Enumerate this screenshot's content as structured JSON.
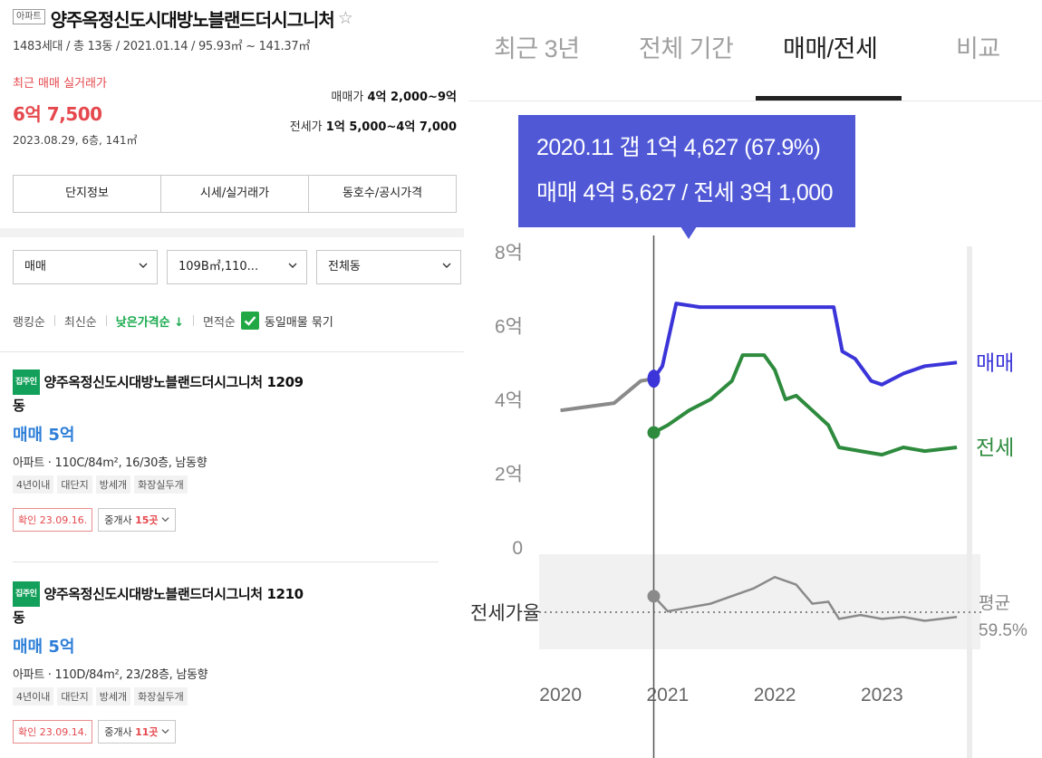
{
  "complex": {
    "type_badge": "아파트",
    "name": "양주옥정신도시대방노블랜드더시그니처",
    "star": "☆",
    "summary": "1483세대 / 총 13동 / 2021.01.14 / 95.93㎡ ~ 141.37㎡",
    "recent_label": "최근 매매 실거래가",
    "recent_price": "6억 7,500",
    "recent_date": "2023.08.29, 6층, 141㎡",
    "sale_range_label": "매매가",
    "sale_range_value": "4억 2,000~9억",
    "jeonse_range_label": "전세가",
    "jeonse_range_value": "1억 5,000~4억 7,000"
  },
  "tabs": [
    "단지정보",
    "시세/실거래가",
    "동호수/공시가격"
  ],
  "filters": {
    "trade_type": "매매",
    "area": "109B㎡,110...",
    "dong": "전체동"
  },
  "sorts": {
    "items": [
      "랭킹순",
      "최신순",
      "낮은가격순 ↓",
      "면적순"
    ],
    "active_index": 2,
    "group_label": "동일매물 묶기",
    "group_checked": true
  },
  "listings": [
    {
      "badge": "집주인",
      "name_line1": "양주옥정신도시대방노블랜드더시그니처 1209",
      "name_line2": "동",
      "price": "매매 5억",
      "desc": "아파트 · 110C/84m², 16/30층, 남동향",
      "tags": [
        "4년이내",
        "대단지",
        "방세개",
        "화장실두개"
      ],
      "confirm": "확인 23.09.16.",
      "agent_label": "중개사",
      "agent_count": "15곳"
    },
    {
      "badge": "집주인",
      "name_line1": "양주옥정신도시대방노블랜드더시그니처 1210",
      "name_line2": "동",
      "price": "매매 5억",
      "desc": "아파트 · 110D/84m², 23/28층, 남동향",
      "tags": [
        "4년이내",
        "대단지",
        "방세개",
        "화장실두개"
      ],
      "confirm": "확인 23.09.14.",
      "agent_label": "중개사",
      "agent_count": "11곳"
    }
  ],
  "chart_tabs": [
    "최근 3년",
    "전체 기간",
    "매매/전세",
    "비교"
  ],
  "chart_tab_active": 2,
  "tooltip": {
    "line1": "2020.11  갭 1억 4,627 (67.9%)",
    "line2": "매매 4억 5,627 / 전세 3억 1,000"
  },
  "colors": {
    "sale": "#3b35d9",
    "jeonse": "#2e8b3e",
    "ratio": "#8a8a8a",
    "accent_red": "#e5484d",
    "accent_blue": "#2e7fd8",
    "tooltip_bg": "#5058d6"
  },
  "chart_data": {
    "type": "line",
    "y_unit": "억",
    "yticks": [
      "8억",
      "6억",
      "4억",
      "2억",
      "0"
    ],
    "ylim": [
      0,
      8
    ],
    "xticks": [
      "2020",
      "2021",
      "2022",
      "2023"
    ],
    "series": [
      {
        "name": "매매",
        "x": [
          2020.0,
          2020.5,
          2020.75,
          2020.87,
          2020.95,
          2021.08,
          2021.3,
          2021.6,
          2021.9,
          2022.3,
          2022.55,
          2022.63,
          2022.75,
          2022.9,
          2023.0,
          2023.2,
          2023.4,
          2023.7
        ],
        "values": [
          3.7,
          3.9,
          4.5,
          4.56,
          4.9,
          6.6,
          6.5,
          6.5,
          6.5,
          6.5,
          6.5,
          5.3,
          5.1,
          4.5,
          4.4,
          4.7,
          4.9,
          5.0
        ]
      },
      {
        "name": "전세",
        "x": [
          2020.87,
          2021.0,
          2021.2,
          2021.4,
          2021.6,
          2021.7,
          2021.9,
          2022.0,
          2022.1,
          2022.2,
          2022.35,
          2022.5,
          2022.6,
          2022.8,
          2023.0,
          2023.2,
          2023.4,
          2023.7
        ],
        "values": [
          3.1,
          3.3,
          3.7,
          4.0,
          4.5,
          5.2,
          5.2,
          4.8,
          4.0,
          4.1,
          3.7,
          3.3,
          2.7,
          2.6,
          2.5,
          2.7,
          2.6,
          2.7
        ]
      },
      {
        "name": "전세가율",
        "x": [
          2020.87,
          2021.0,
          2021.2,
          2021.4,
          2021.6,
          2021.8,
          2022.0,
          2022.2,
          2022.35,
          2022.5,
          2022.6,
          2022.8,
          2023.0,
          2023.2,
          2023.4,
          2023.7
        ],
        "values": [
          67.9,
          60.0,
          62.0,
          64.0,
          68.0,
          72.0,
          78.0,
          74.0,
          64.0,
          65.0,
          56.0,
          58.0,
          56.0,
          57.0,
          55.0,
          57.0
        ]
      }
    ],
    "series_labels": [
      "매매",
      "전세"
    ],
    "ratio_label": "전세가율",
    "avg_label": "평균",
    "avg_value": "59.5%",
    "selected": {
      "x": 2020.87,
      "label": "2020.11"
    }
  }
}
